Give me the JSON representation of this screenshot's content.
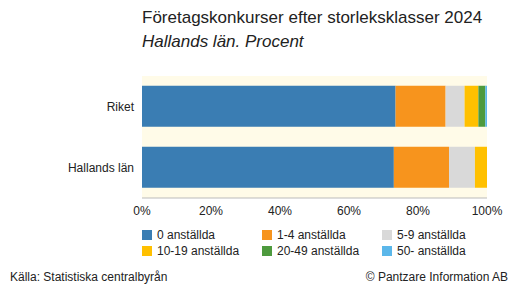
{
  "chart_data": {
    "type": "bar",
    "title": "Företagskonkurser efter storleksklasser 2024",
    "subtitle": "Hallands län. Procent",
    "categories": [
      "Riket",
      "Hallands län"
    ],
    "series": [
      {
        "name": "0 anställda",
        "color": "#3a7db3",
        "values": [
          73.5,
          73
        ]
      },
      {
        "name": "1-4 anställda",
        "color": "#f7941d",
        "values": [
          14.5,
          16
        ]
      },
      {
        "name": "5-9 anställda",
        "color": "#d9d9d9",
        "values": [
          5.5,
          7.5
        ]
      },
      {
        "name": "10-19 anställda",
        "color": "#ffc000",
        "values": [
          4,
          3.5
        ]
      },
      {
        "name": "20-49 anställda",
        "color": "#4e9a3e",
        "values": [
          2,
          0
        ]
      },
      {
        "name": "50- anställda",
        "color": "#5bb7ea",
        "values": [
          0.5,
          0
        ]
      }
    ],
    "orientation": "horizontal",
    "stacked": true,
    "xlim": [
      0,
      100
    ],
    "xticks": [
      {
        "value": 0,
        "label": "0%"
      },
      {
        "value": 20,
        "label": "20%"
      },
      {
        "value": 40,
        "label": "40%"
      },
      {
        "value": 60,
        "label": "60%"
      },
      {
        "value": 80,
        "label": "80%"
      },
      {
        "value": 100,
        "label": "100%"
      }
    ],
    "grid": false,
    "legend": "bottom",
    "source": "Källa: Statistiska centralbyrån",
    "copyright": "© Pantzare Information AB"
  }
}
